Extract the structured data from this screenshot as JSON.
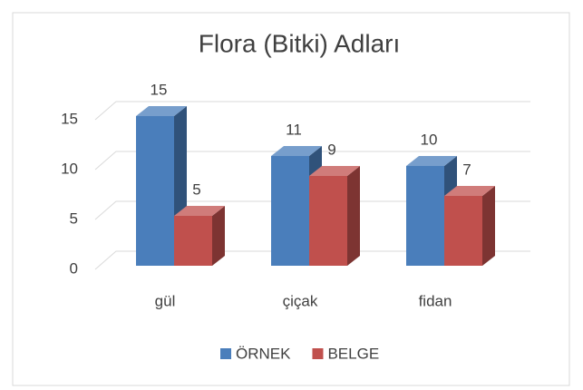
{
  "chart_data": {
    "type": "bar3d",
    "title": "Flora (Bitki) Adları",
    "categories": [
      "gül",
      "çiçak",
      "fidan"
    ],
    "series": [
      {
        "name": "ÖRNEK",
        "color": "#4a7ebb",
        "values": [
          15,
          11,
          10
        ]
      },
      {
        "name": "BELGE",
        "color": "#c0504d",
        "values": [
          5,
          9,
          7
        ]
      }
    ],
    "ylim": [
      0,
      15
    ],
    "yticks": [
      0,
      5,
      10,
      15
    ],
    "grid": true,
    "legend": "bottom"
  }
}
